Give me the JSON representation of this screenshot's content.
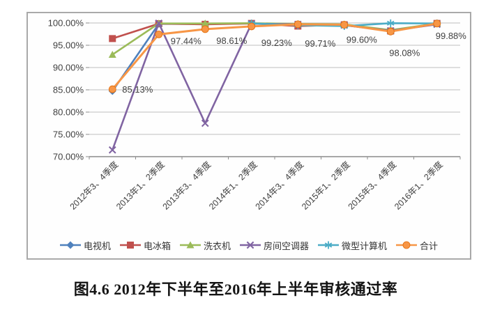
{
  "figure_caption": "图4.6 2012年下半年至2016年上半年审核通过率",
  "chart_data": {
    "type": "line",
    "title": "",
    "xlabel": "",
    "ylabel": "",
    "grid": true,
    "legend_position": "bottom",
    "categories": [
      "2012年3、4季度",
      "2013年1、2季度",
      "2013年3、4季度",
      "2014年1、2季度",
      "2014年3、4季度",
      "2015年1、2季度",
      "2015年3、4季度",
      "2016年1、2季度"
    ],
    "y_axis": {
      "min": 70,
      "max": 100,
      "step": 5,
      "tick_labels": [
        "100.00%",
        "95.00%",
        "90.00%",
        "85.00%",
        "80.00%",
        "75.00%",
        "70.00%"
      ]
    },
    "series": [
      {
        "name": "电视机",
        "marker": "diamond",
        "color": "#4F81BD",
        "values": [
          84.7,
          99.8,
          99.8,
          99.9,
          99.7,
          99.5,
          98.3,
          99.9
        ]
      },
      {
        "name": "电冰箱",
        "marker": "square",
        "color": "#C0504D",
        "values": [
          96.5,
          99.85,
          99.7,
          99.9,
          99.3,
          99.6,
          98.2,
          99.9
        ]
      },
      {
        "name": "洗衣机",
        "marker": "triangle",
        "color": "#9BBB59",
        "values": [
          92.9,
          99.9,
          99.9,
          99.95,
          99.8,
          99.7,
          98.4,
          99.9
        ]
      },
      {
        "name": "房间空调器",
        "marker": "x",
        "color": "#8064A2",
        "values": [
          71.5,
          99.95,
          77.5,
          99.85,
          99.7,
          99.5,
          98.25,
          99.7
        ]
      },
      {
        "name": "微型计算机",
        "marker": "asterisk",
        "color": "#4BACC6",
        "values": [
          null,
          null,
          null,
          99.9,
          99.5,
          99.3,
          99.95,
          99.9
        ]
      },
      {
        "name": "合计",
        "marker": "circle",
        "color": "#F79646",
        "values": [
          85.13,
          97.44,
          98.61,
          99.23,
          99.71,
          99.6,
          98.08,
          99.88
        ],
        "show_labels": true,
        "labels": [
          "85.13%",
          "97.44%",
          "98.61%",
          "99.23%",
          "99.71%",
          "99.60%",
          "98.08%",
          "99.88%"
        ]
      }
    ],
    "colors": {
      "gridline": "#bfbfbf",
      "axis": "#8c8c8c",
      "tick_text": "#404040",
      "data_label_text": "#3f3f3f"
    }
  }
}
